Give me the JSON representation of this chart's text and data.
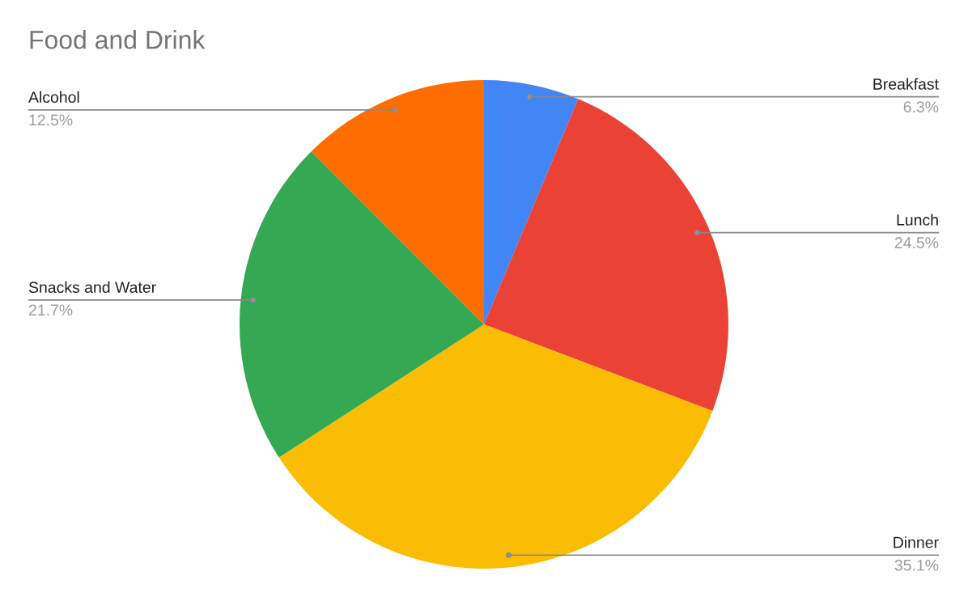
{
  "chart_data": {
    "type": "pie",
    "title": "Food and Drink",
    "categories": [
      "Breakfast",
      "Lunch",
      "Dinner",
      "Snacks and Water",
      "Alcohol"
    ],
    "values": [
      6.3,
      24.5,
      35.1,
      21.7,
      12.5
    ],
    "value_labels": [
      "6.3%",
      "24.5%",
      "35.1%",
      "21.7%",
      "12.5%"
    ],
    "colors": [
      "#4285f4",
      "#ea4335",
      "#fbbc04",
      "#34a853",
      "#ff6d01"
    ],
    "legend": false
  }
}
